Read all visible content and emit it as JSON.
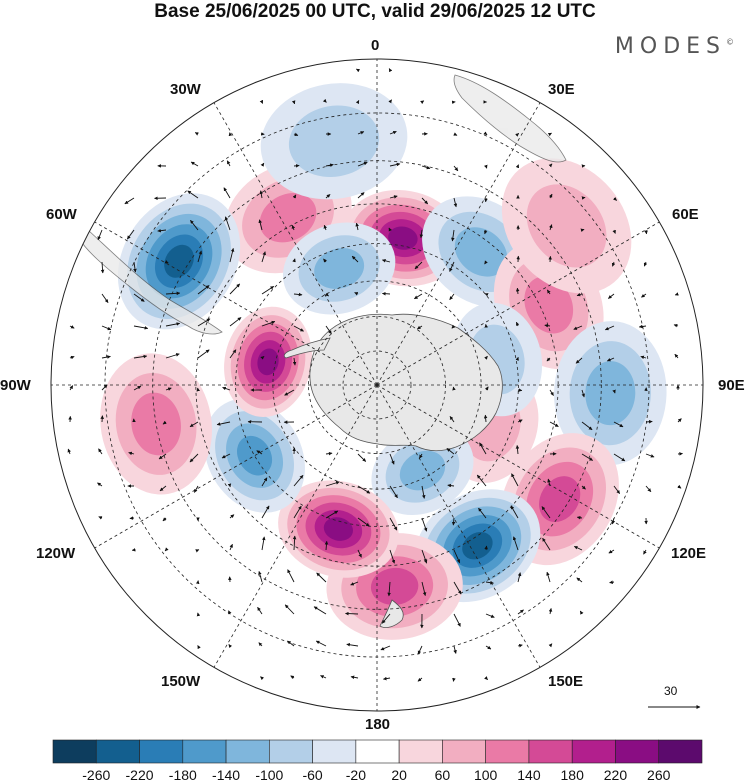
{
  "title": "Base 25/06/2025 00 UTC, valid 29/06/2025 12 UTC",
  "logo": "MODES",
  "logo_mark": "©",
  "longitude_labels": {
    "top": "0",
    "top_right": "30E",
    "right_upper": "60E",
    "right": "90E",
    "right_lower": "120E",
    "bottom_right": "150E",
    "bottom": "180",
    "bottom_left": "150W",
    "left_lower": "120W",
    "left": "90W",
    "left_upper": "60W",
    "top_left": "30W"
  },
  "reference_vector_label": "30",
  "colorbar": {
    "tick_labels": [
      "-260",
      "-220",
      "-180",
      "-140",
      "-100",
      "-60",
      "-20",
      "20",
      "60",
      "100",
      "140",
      "180",
      "220",
      "260"
    ],
    "colors": [
      "#0d3d5e",
      "#135f8f",
      "#2a7db6",
      "#4f9acb",
      "#7fb6dc",
      "#b3cfe8",
      "#dde6f3",
      "#ffffff",
      "#f8d6dd",
      "#f2aec1",
      "#ea7aa6",
      "#d44a96",
      "#b21f8d",
      "#8a0d83",
      "#5c0a6d"
    ]
  },
  "anomaly_centers": [
    {
      "lon": -28,
      "lat": -38,
      "value": 110,
      "name": "anomaly-30w"
    },
    {
      "lon": 10,
      "lat": -48,
      "value": 240,
      "name": "anomaly-10e"
    },
    {
      "lon": 38,
      "lat": -43,
      "value": -130,
      "name": "anomaly-40e"
    },
    {
      "lon": 65,
      "lat": -38,
      "value": 100,
      "name": "anomaly-65e"
    },
    {
      "lon": 92,
      "lat": -28,
      "value": -120,
      "name": "anomaly-90e"
    },
    {
      "lon": 110,
      "lat": -55,
      "value": 90,
      "name": "anomaly-110e"
    },
    {
      "lon": 122,
      "lat": -32,
      "value": 170,
      "name": "anomaly-120e"
    },
    {
      "lon": 148,
      "lat": -38,
      "value": -230,
      "name": "anomaly-150e"
    },
    {
      "lon": 175,
      "lat": -35,
      "value": 150,
      "name": "anomaly-175e"
    },
    {
      "lon": 152,
      "lat": -62,
      "value": -120,
      "name": "anomaly-150e-polar"
    },
    {
      "lon": -165,
      "lat": -48,
      "value": 240,
      "name": "anomaly-165w"
    },
    {
      "lon": -120,
      "lat": -50,
      "value": -140,
      "name": "anomaly-120w"
    },
    {
      "lon": -100,
      "lat": -30,
      "value": 130,
      "name": "anomaly-100w"
    },
    {
      "lon": -78,
      "lat": -58,
      "value": 230,
      "name": "anomaly-78w"
    },
    {
      "lon": -58,
      "lat": -28,
      "value": -230,
      "name": "anomaly-60w"
    },
    {
      "lon": -18,
      "lat": -55,
      "value": -130,
      "name": "anomaly-20w"
    },
    {
      "lon": -10,
      "lat": -25,
      "value": -60,
      "name": "anomaly-10w-weak"
    },
    {
      "lon": 50,
      "lat": -25,
      "value": 60,
      "name": "anomaly-50e-weak"
    },
    {
      "lon": 78,
      "lat": -55,
      "value": -60,
      "name": "anomaly-78e-weak"
    }
  ]
}
